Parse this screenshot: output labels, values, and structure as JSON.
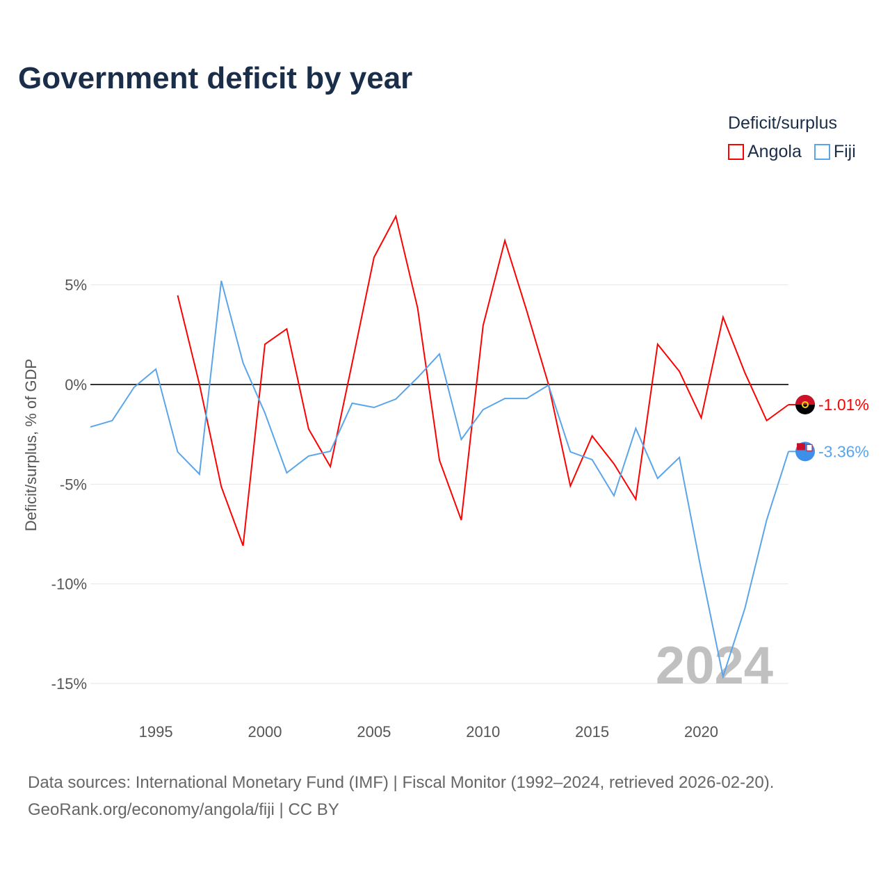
{
  "title": "Government deficit by year",
  "legend": {
    "title": "Deficit/surplus",
    "items": [
      {
        "name": "Angola",
        "color": "#ff0000"
      },
      {
        "name": "Fiji",
        "color": "#5aa5ea"
      }
    ]
  },
  "year_watermark": "2024",
  "source_line1": "Data sources: International Monetary Fund (IMF) | Fiscal Monitor (1992–2024, retrieved 2026-02-20).",
  "source_line2": "GeoRank.org/economy/angola/fiji | CC BY",
  "chart_data": {
    "type": "line",
    "title": "Government deficit by year",
    "xlabel": "",
    "ylabel": "Deficit/surplus, % of GDP",
    "xlim": [
      1992,
      2024
    ],
    "ylim": [
      -16,
      9
    ],
    "xticks": [
      1995,
      2000,
      2005,
      2010,
      2015,
      2020
    ],
    "yticks": [
      {
        "v": 5,
        "label": "5%"
      },
      {
        "v": 0,
        "label": "0%"
      },
      {
        "v": -5,
        "label": "-5%"
      },
      {
        "v": -10,
        "label": "-10%"
      },
      {
        "v": -15,
        "label": "-15%"
      }
    ],
    "grid": true,
    "legend_position": "top-right",
    "series": [
      {
        "name": "Angola",
        "color": "#ff0000",
        "end_label": "-1.01%",
        "x": [
          1996,
          1997,
          1998,
          1999,
          2000,
          2001,
          2002,
          2003,
          2004,
          2005,
          2006,
          2007,
          2008,
          2009,
          2010,
          2011,
          2012,
          2013,
          2014,
          2015,
          2016,
          2017,
          2018,
          2019,
          2020,
          2021,
          2022,
          2023,
          2024
        ],
        "values": [
          4.47,
          0.0,
          -5.13,
          -8.09,
          2.02,
          2.79,
          -2.23,
          -4.12,
          1.08,
          6.38,
          8.44,
          3.84,
          -3.8,
          -6.8,
          2.96,
          7.22,
          3.7,
          0.0,
          -5.09,
          -2.58,
          -3.98,
          -5.76,
          2.02,
          0.66,
          -1.67,
          3.38,
          0.59,
          -1.81,
          -1.01
        ]
      },
      {
        "name": "Fiji",
        "color": "#5aa5ea",
        "end_label": "-3.36%",
        "x": [
          1992,
          1993,
          1994,
          1995,
          1996,
          1997,
          1998,
          1999,
          2000,
          2001,
          2002,
          2003,
          2004,
          2005,
          2006,
          2007,
          2008,
          2009,
          2010,
          2011,
          2012,
          2013,
          2014,
          2015,
          2016,
          2017,
          2018,
          2019,
          2020,
          2021,
          2022,
          2023,
          2024
        ],
        "values": [
          -2.13,
          -1.81,
          -0.14,
          0.77,
          -3.38,
          -4.5,
          5.2,
          1.08,
          -1.43,
          -4.43,
          -3.59,
          -3.35,
          -0.94,
          -1.15,
          -0.73,
          0.35,
          1.53,
          -2.76,
          -1.26,
          -0.7,
          -0.7,
          -0.03,
          -3.38,
          -3.77,
          -5.58,
          -2.2,
          -4.71,
          -3.66,
          -9.31,
          -14.65,
          -11.23,
          -6.8,
          -3.36
        ]
      }
    ]
  }
}
